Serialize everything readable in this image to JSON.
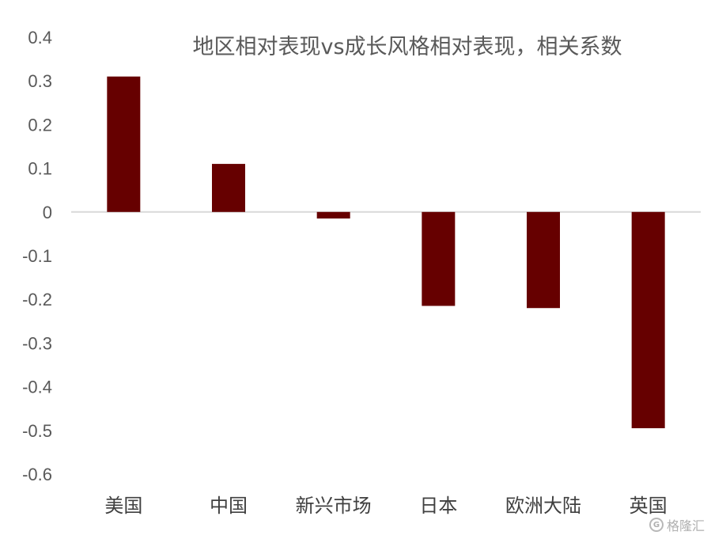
{
  "chart_data": {
    "type": "bar",
    "title": "地区相对表现vs成长风格相对表现，相关系数",
    "categories": [
      "美国",
      "中国",
      "新兴市场",
      "日本",
      "欧洲大陆",
      "英国"
    ],
    "values": [
      0.31,
      0.11,
      -0.015,
      -0.215,
      -0.22,
      -0.495
    ],
    "ylim": [
      -0.6,
      0.4
    ],
    "yticks": [
      0.4,
      0.3,
      0.2,
      0.1,
      0,
      -0.1,
      -0.2,
      -0.3,
      -0.4,
      -0.5,
      -0.6
    ],
    "ytick_labels": [
      "0.4",
      "0.3",
      "0.2",
      "0.1",
      "0",
      "-0.1",
      "-0.2",
      "-0.3",
      "-0.4",
      "-0.5",
      "-0.6"
    ],
    "xlabel": "",
    "ylabel": "",
    "grid": false,
    "bar_color": "#660000",
    "zero_line_color": "#d9d9d9"
  },
  "watermark": {
    "logo": "G",
    "text": "格隆汇"
  }
}
